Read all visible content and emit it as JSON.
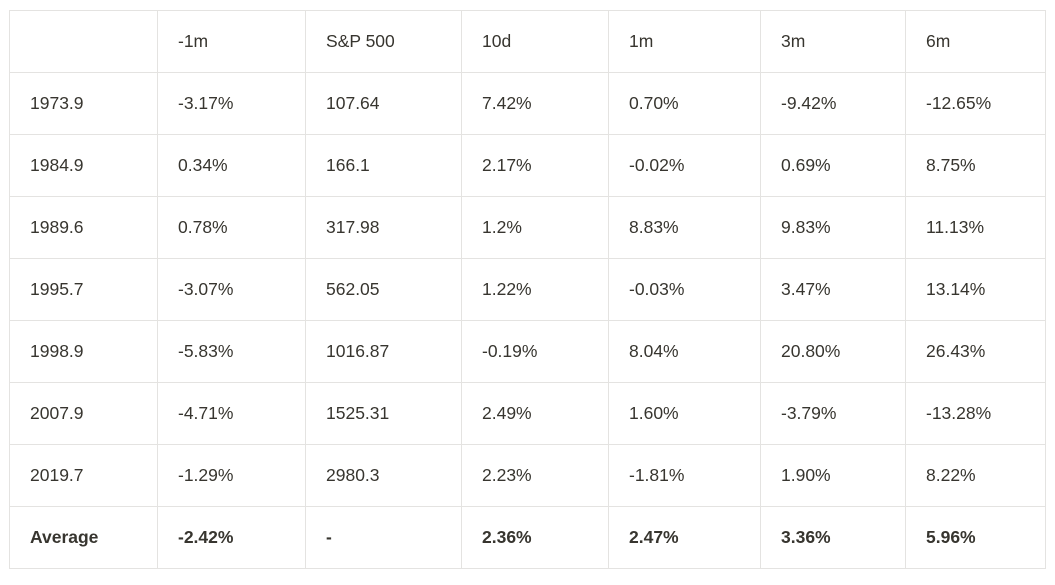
{
  "table": {
    "columns": [
      "",
      "-1m",
      "S&P 500",
      "10d",
      "1m",
      "3m",
      "6m"
    ],
    "rows": [
      {
        "cells": [
          "1973.9",
          "-3.17%",
          "107.64",
          "7.42%",
          "0.70%",
          "-9.42%",
          "-12.65%"
        ]
      },
      {
        "cells": [
          "1984.9",
          "0.34%",
          "166.1",
          "2.17%",
          "-0.02%",
          "0.69%",
          "8.75%"
        ]
      },
      {
        "cells": [
          "1989.6",
          "0.78%",
          "317.98",
          "1.2%",
          "8.83%",
          "9.83%",
          "11.13%"
        ]
      },
      {
        "cells": [
          "1995.7",
          "-3.07%",
          "562.05",
          "1.22%",
          "-0.03%",
          "3.47%",
          "13.14%"
        ]
      },
      {
        "cells": [
          "1998.9",
          "-5.83%",
          "1016.87",
          "-0.19%",
          "8.04%",
          "20.80%",
          "26.43%"
        ]
      },
      {
        "cells": [
          "2007.9",
          "-4.71%",
          "1525.31",
          "2.49%",
          "1.60%",
          "-3.79%",
          "-13.28%"
        ]
      },
      {
        "cells": [
          "2019.7",
          "-1.29%",
          "2980.3",
          "2.23%",
          "-1.81%",
          "1.90%",
          "8.22%"
        ]
      },
      {
        "cells": [
          "Average",
          "-2.42%",
          "-",
          "2.36%",
          "2.47%",
          "3.36%",
          "5.96%"
        ],
        "bold": true
      }
    ]
  },
  "chart_data": {
    "type": "table",
    "title": "",
    "columns": [
      "",
      "-1m",
      "S&P 500",
      "10d",
      "1m",
      "3m",
      "6m"
    ],
    "row_labels": [
      "1973.9",
      "1984.9",
      "1989.6",
      "1995.7",
      "1998.9",
      "2007.9",
      "2019.7",
      "Average"
    ],
    "series": [
      {
        "name": "-1m",
        "values": [
          "-3.17%",
          "0.34%",
          "0.78%",
          "-3.07%",
          "-5.83%",
          "-4.71%",
          "-1.29%",
          "-2.42%"
        ]
      },
      {
        "name": "S&P 500",
        "values": [
          "107.64",
          "166.1",
          "317.98",
          "562.05",
          "1016.87",
          "1525.31",
          "2980.3",
          "-"
        ]
      },
      {
        "name": "10d",
        "values": [
          "7.42%",
          "2.17%",
          "1.2%",
          "1.22%",
          "-0.19%",
          "2.49%",
          "2.23%",
          "2.36%"
        ]
      },
      {
        "name": "1m",
        "values": [
          "0.70%",
          "-0.02%",
          "8.83%",
          "-0.03%",
          "8.04%",
          "1.60%",
          "-1.81%",
          "2.47%"
        ]
      },
      {
        "name": "3m",
        "values": [
          "-9.42%",
          "0.69%",
          "9.83%",
          "3.47%",
          "20.80%",
          "-3.79%",
          "1.90%",
          "3.36%"
        ]
      },
      {
        "name": "6m",
        "values": [
          "-12.65%",
          "8.75%",
          "11.13%",
          "13.14%",
          "26.43%",
          "-13.28%",
          "8.22%",
          "5.96%"
        ]
      }
    ]
  },
  "colors": {
    "text": "#37352f",
    "border": "#e4e3e1",
    "background": "#ffffff"
  }
}
